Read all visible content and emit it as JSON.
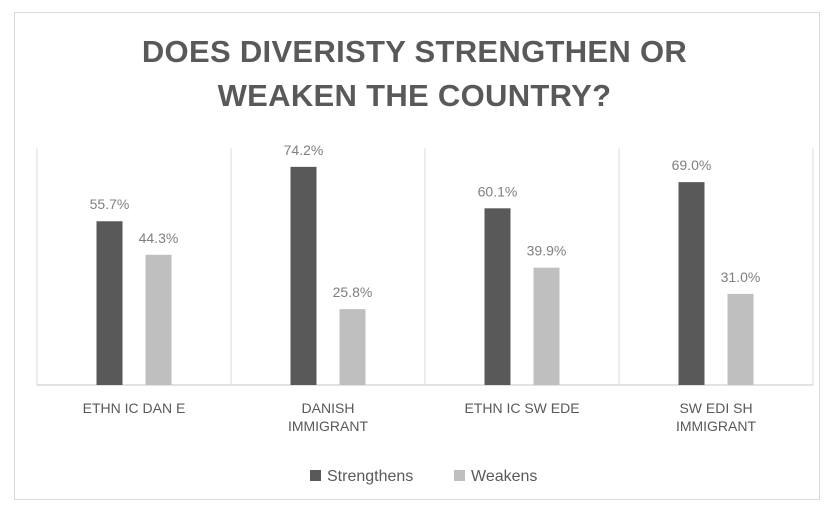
{
  "chart_data": {
    "type": "bar",
    "title_lines": [
      "DOES DIVERISTY STRENGTHEN OR",
      "WEAKEN THE COUNTRY?"
    ],
    "categories": [
      [
        "ETHN IC DAN E"
      ],
      [
        "DANISH",
        "IMMIGRANT"
      ],
      [
        "ETHN IC SW EDE"
      ],
      [
        "SW EDI SH",
        "IMMIGRANT"
      ]
    ],
    "series": [
      {
        "name": "Strengthens",
        "color": "#595959",
        "values": [
          55.7,
          74.2,
          60.1,
          69.0
        ],
        "labels": [
          "55.7%",
          "74.2%",
          "60.1%",
          "69.0%"
        ]
      },
      {
        "name": "Weakens",
        "color": "#bfbfbf",
        "values": [
          44.3,
          25.8,
          39.9,
          31.0
        ],
        "labels": [
          "44.3%",
          "25.8%",
          "39.9%",
          "31.0%"
        ]
      }
    ],
    "ylim": [
      0,
      80
    ],
    "gridlines": false,
    "category_separators": true,
    "legend_position": "bottom"
  }
}
